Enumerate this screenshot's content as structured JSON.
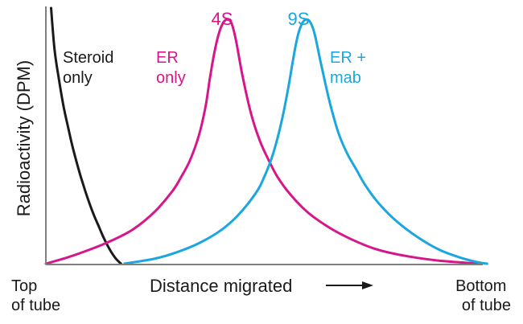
{
  "chart_data": {
    "type": "line",
    "title": "",
    "xlabel": "Distance migrated",
    "ylabel": "Radioactivity (DPM)",
    "x_start_label": [
      "Top",
      "of tube"
    ],
    "x_end_label": [
      "Bottom",
      "of tube"
    ],
    "xlim": [
      0,
      100
    ],
    "ylim": [
      0,
      100
    ],
    "grid": false,
    "series": [
      {
        "name": "Steroid only",
        "label_lines": [
          "Steroid",
          "only"
        ],
        "color": "#1a1a1a",
        "x": [
          1.2,
          2,
          3,
          4,
          5,
          6,
          7,
          8,
          9,
          10,
          11,
          12,
          13,
          14,
          15,
          16,
          17,
          17.2
        ],
        "y": [
          100,
          83.5,
          72,
          62,
          54,
          46.5,
          40,
          34,
          28.5,
          23.5,
          19,
          15,
          11,
          7.5,
          4.5,
          2,
          0.3,
          0
        ]
      },
      {
        "name": "ER only",
        "label_lines": [
          "ER",
          "only"
        ],
        "color": "#d6168a",
        "peak_label": "4S",
        "x": [
          0,
          5,
          10,
          15,
          20,
          25,
          29,
          31,
          33,
          35,
          36.5,
          37.5,
          38.5,
          39.5,
          40.5,
          41.5,
          42.5,
          43.5,
          45,
          47,
          49,
          51,
          53,
          56,
          60,
          65,
          70,
          75,
          80,
          85,
          90,
          95,
          99
        ],
        "y": [
          0,
          2.5,
          5.5,
          9,
          13.5,
          20.5,
          28.5,
          34,
          40.5,
          50,
          61,
          72,
          82,
          89.5,
          94,
          95.5,
          94,
          87.5,
          73.5,
          58.5,
          48,
          40.5,
          34,
          27,
          20,
          14,
          9.5,
          6,
          3.8,
          2.3,
          1.2,
          0.5,
          0
        ]
      },
      {
        "name": "ER + mab",
        "label_lines": [
          "ER +",
          "mab"
        ],
        "color": "#1aa7df",
        "peak_label": "9S",
        "x": [
          18,
          25,
          30,
          35,
          40,
          44,
          48,
          50,
          52,
          54,
          55.5,
          56.5,
          57.5,
          58.5,
          59.5,
          60.5,
          61.5,
          63,
          65,
          67,
          69,
          71,
          73,
          76,
          80,
          85,
          90,
          95,
          99,
          101
        ],
        "y": [
          0,
          2,
          4.5,
          8,
          13,
          19,
          27.5,
          34,
          43,
          56,
          69,
          79,
          88,
          93.5,
          95.5,
          94.5,
          90,
          78,
          63,
          51,
          43,
          37,
          31,
          24,
          17,
          10.5,
          5.5,
          2.3,
          0.5,
          0
        ]
      }
    ]
  }
}
